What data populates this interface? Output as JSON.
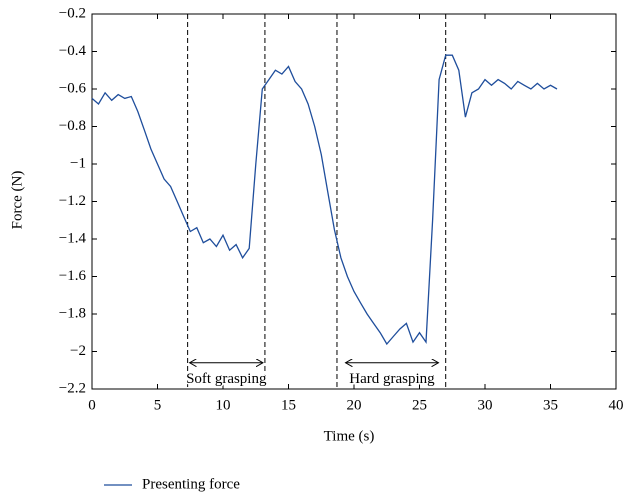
{
  "chart_data": {
    "type": "line",
    "x_label": "Time (s)",
    "y_label": "Force (N)",
    "xlim": [
      0,
      40
    ],
    "ylim": [
      -2.2,
      -0.2
    ],
    "xticks": [
      0,
      5,
      10,
      15,
      20,
      25,
      30,
      35,
      40
    ],
    "yticks": [
      {
        "value": -0.2,
        "label": "−0.2"
      },
      {
        "value": -0.4,
        "label": "−0.4"
      },
      {
        "value": -0.6,
        "label": "−0.6"
      },
      {
        "value": -0.8,
        "label": "−0.8"
      },
      {
        "value": -1,
        "label": "−1"
      },
      {
        "value": -1.2,
        "label": "−1.2"
      },
      {
        "value": -1.4,
        "label": "−1.4"
      },
      {
        "value": -1.6,
        "label": "−1.6"
      },
      {
        "value": -1.8,
        "label": "−1.8"
      },
      {
        "value": -2,
        "label": "−2"
      },
      {
        "value": -2.2,
        "label": "−2.2"
      }
    ],
    "x": [
      0,
      0.5,
      1,
      1.5,
      2,
      2.5,
      3,
      3.5,
      4,
      4.5,
      5,
      5.5,
      6,
      6.5,
      7,
      7.5,
      8,
      8.5,
      9,
      9.5,
      10,
      10.5,
      11,
      11.5,
      12,
      12.5,
      13,
      13.5,
      14,
      14.5,
      15,
      15.5,
      16,
      16.5,
      17,
      17.5,
      18,
      18.5,
      19,
      19.5,
      20,
      20.5,
      21,
      21.5,
      22,
      22.5,
      23,
      23.5,
      24,
      24.5,
      25,
      25.5,
      26,
      26.5,
      27,
      27.5,
      28,
      28.5,
      29,
      29.5,
      30,
      30.5,
      31,
      31.5,
      32,
      32.5,
      33,
      33.5,
      34,
      34.5,
      35,
      35.5
    ],
    "series": [
      {
        "name": "Presenting force",
        "color": "#1f4e9c",
        "values": [
          -0.65,
          -0.68,
          -0.62,
          -0.66,
          -0.63,
          -0.65,
          -0.64,
          -0.72,
          -0.82,
          -0.92,
          -1.0,
          -1.08,
          -1.12,
          -1.2,
          -1.28,
          -1.36,
          -1.34,
          -1.42,
          -1.4,
          -1.44,
          -1.38,
          -1.46,
          -1.43,
          -1.5,
          -1.45,
          -1.0,
          -0.6,
          -0.55,
          -0.5,
          -0.52,
          -0.48,
          -0.56,
          -0.6,
          -0.68,
          -0.8,
          -0.95,
          -1.15,
          -1.35,
          -1.5,
          -1.6,
          -1.68,
          -1.74,
          -1.8,
          -1.85,
          -1.9,
          -1.96,
          -1.92,
          -1.88,
          -1.85,
          -1.95,
          -1.9,
          -1.95,
          -1.3,
          -0.55,
          -0.42,
          -0.42,
          -0.5,
          -0.75,
          -0.62,
          -0.6,
          -0.55,
          -0.58,
          -0.55,
          -0.57,
          -0.6,
          -0.56,
          -0.58,
          -0.6,
          -0.57,
          -0.6,
          -0.58,
          -0.6
        ]
      }
    ],
    "vlines": [
      7.3,
      13.2,
      18.7,
      27.0
    ],
    "annotations": [
      {
        "text": "Soft grasping",
        "x_start": 7.3,
        "x_end": 13.2,
        "y": -2.06
      },
      {
        "text": "Hard grasping",
        "x_start": 19.2,
        "x_end": 26.6,
        "y": -2.06
      }
    ]
  }
}
